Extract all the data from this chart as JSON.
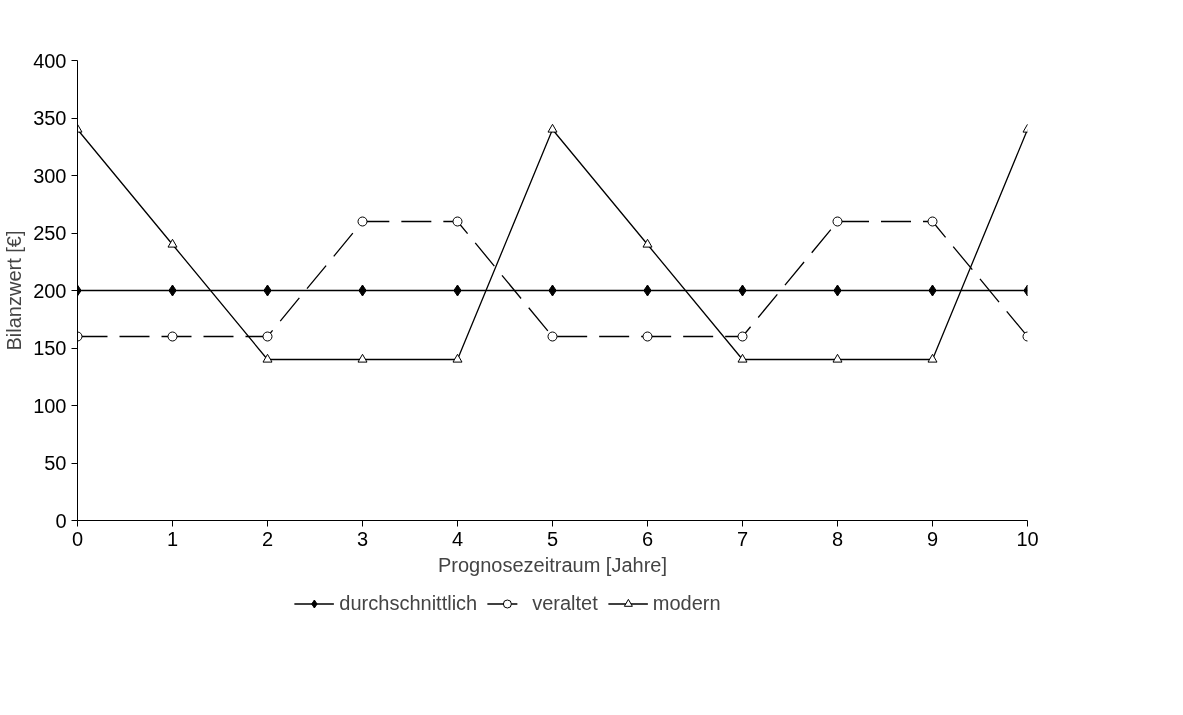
{
  "chart_data": {
    "type": "line",
    "xlabel": "Prognosezeitraum [Jahre]",
    "ylabel": "Bilanzwert [€]",
    "x": [
      0,
      1,
      2,
      3,
      4,
      5,
      6,
      7,
      8,
      9,
      10
    ],
    "xlim": [
      0,
      10
    ],
    "xticks": [
      0,
      1,
      2,
      3,
      4,
      5,
      6,
      7,
      8,
      9,
      10
    ],
    "ylim": [
      0,
      400
    ],
    "yticks": [
      0,
      50,
      100,
      150,
      200,
      250,
      300,
      350,
      400
    ],
    "grid": false,
    "legend": "bottom",
    "series": [
      {
        "name": "durchschnittlich",
        "color": "#000000",
        "marker": "diamond",
        "line_style": "solid",
        "values": [
          200,
          200,
          200,
          200,
          200,
          200,
          200,
          200,
          200,
          200,
          200
        ]
      },
      {
        "name": "veraltet",
        "color": "#000000",
        "marker": "circle",
        "line_style": "dashed",
        "values": [
          160,
          160,
          160,
          260,
          260,
          160,
          160,
          160,
          260,
          260,
          160
        ]
      },
      {
        "name": "modern",
        "color": "#000000",
        "marker": "triangle",
        "line_style": "solid",
        "values": [
          340,
          240,
          140,
          140,
          140,
          340,
          240,
          140,
          140,
          140,
          340
        ]
      }
    ]
  }
}
